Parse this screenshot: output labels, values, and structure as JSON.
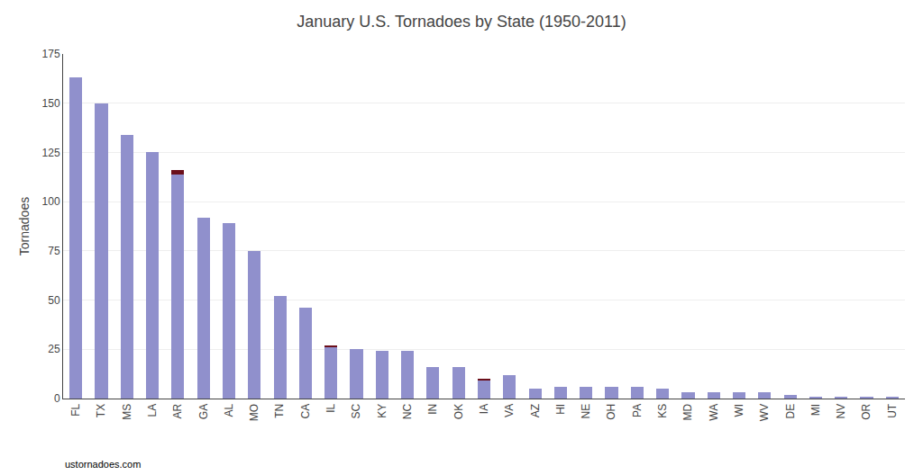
{
  "chart_data": {
    "type": "bar",
    "title": "January U.S. Tornadoes by State (1950-2011)",
    "ylabel": "Tornadoes",
    "annotation": "ustornadoes.com",
    "categories": [
      "FL",
      "TX",
      "MS",
      "LA",
      "AR",
      "GA",
      "AL",
      "MO",
      "TN",
      "CA",
      "IL",
      "SC",
      "KY",
      "NC",
      "IN",
      "OK",
      "IA",
      "VA",
      "AZ",
      "HI",
      "NE",
      "OH",
      "PA",
      "KS",
      "MD",
      "WA",
      "WI",
      "WV",
      "DE",
      "MI",
      "NV",
      "OR",
      "UT"
    ],
    "stacked": true,
    "series": [
      {
        "color": "#9090cc",
        "values": [
          163,
          150,
          134,
          125,
          114,
          92,
          89,
          75,
          52,
          46,
          26,
          25,
          24,
          24,
          16,
          16,
          9,
          12,
          5,
          6,
          6,
          6,
          6,
          5,
          3,
          3,
          3,
          3,
          2,
          1,
          1,
          1,
          1
        ]
      },
      {
        "color": "#6b0f1a",
        "values": [
          null,
          null,
          null,
          null,
          2,
          null,
          null,
          null,
          null,
          null,
          1,
          null,
          null,
          null,
          null,
          null,
          1,
          null,
          null,
          null,
          null,
          null,
          null,
          null,
          null,
          null,
          null,
          null,
          null,
          null,
          null,
          null,
          null
        ]
      }
    ],
    "ylim": [
      0,
      175
    ],
    "yticks": [
      0,
      25,
      50,
      75,
      100,
      125,
      150,
      175
    ],
    "grid": true
  }
}
